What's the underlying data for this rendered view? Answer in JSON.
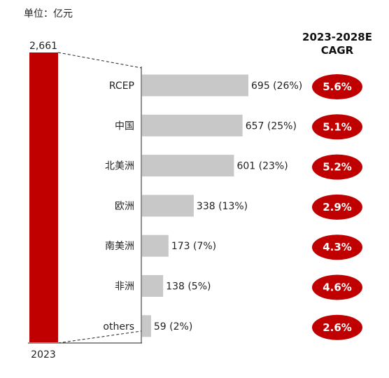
{
  "unit_label": "单位：亿元",
  "total": {
    "value_label": "2,661",
    "year": "2023",
    "color": "#c00000"
  },
  "cagr_header": {
    "line1": "2023-2028E",
    "line2": "CAGR"
  },
  "chart_data": {
    "type": "bar",
    "orientation": "horizontal",
    "total_2023": 2661,
    "categories": [
      "RCEP",
      "中国",
      "北美洲",
      "欧洲",
      "南美洲",
      "非洲",
      "others"
    ],
    "values": [
      695,
      657,
      601,
      338,
      173,
      138,
      59
    ],
    "shares": [
      "26%",
      "25%",
      "23%",
      "13%",
      "7%",
      "5%",
      "2%"
    ],
    "cagr": [
      "5.6%",
      "5.1%",
      "5.2%",
      "2.9%",
      "4.3%",
      "4.6%",
      "2.6%"
    ],
    "xlim": [
      0,
      695
    ],
    "bar_color": "#c8c8c8",
    "cagr_color": "#c00000"
  }
}
